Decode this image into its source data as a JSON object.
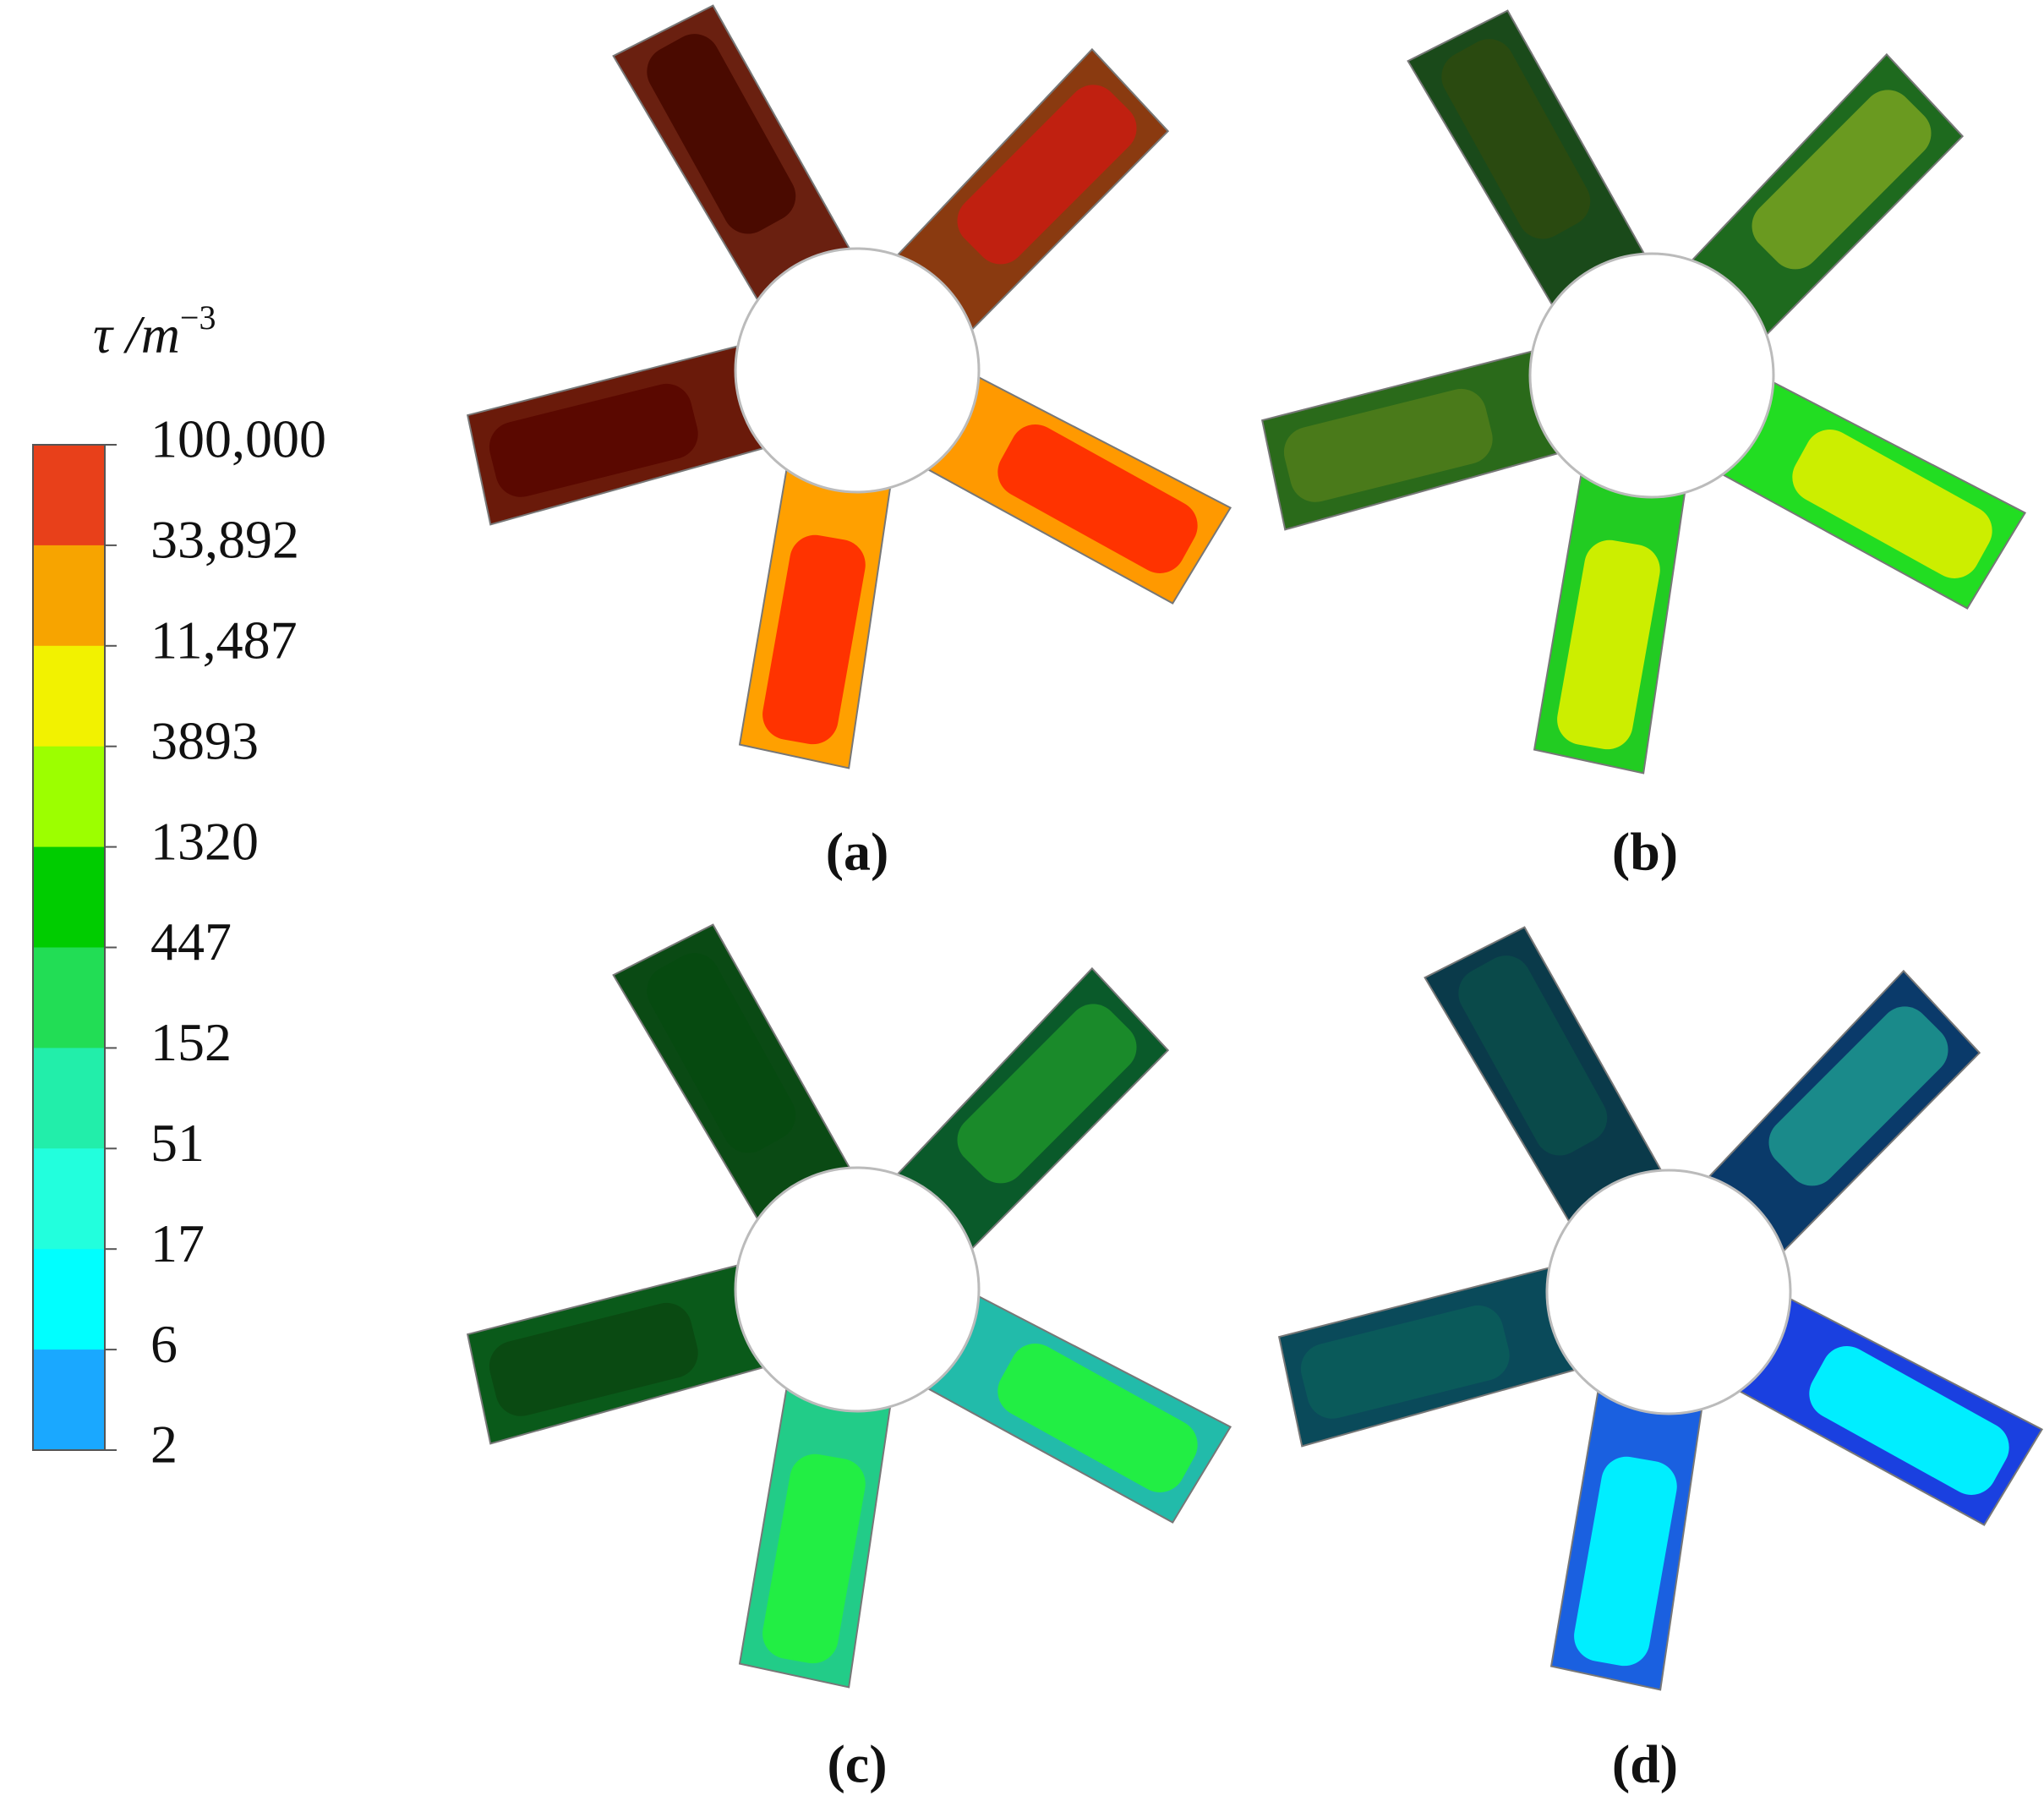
{
  "legend": {
    "title": "τ /m",
    "title_exponent": "−3",
    "labels": [
      "100,000",
      "33,892",
      "11,487",
      "3893",
      "1320",
      "447",
      "152",
      "51",
      "17",
      "6",
      "2"
    ],
    "colors": [
      "#e8401a",
      "#f7a400",
      "#f2f200",
      "#9cff00",
      "#00cc00",
      "#22dd55",
      "#22eeaa",
      "#22ffdd",
      "#00ffff",
      "#1aa8ff",
      "#1a5cff"
    ]
  },
  "panels": [
    {
      "label": "(a)"
    },
    {
      "label": "(b)"
    },
    {
      "label": "(c)"
    },
    {
      "label": "(d)"
    }
  ]
}
